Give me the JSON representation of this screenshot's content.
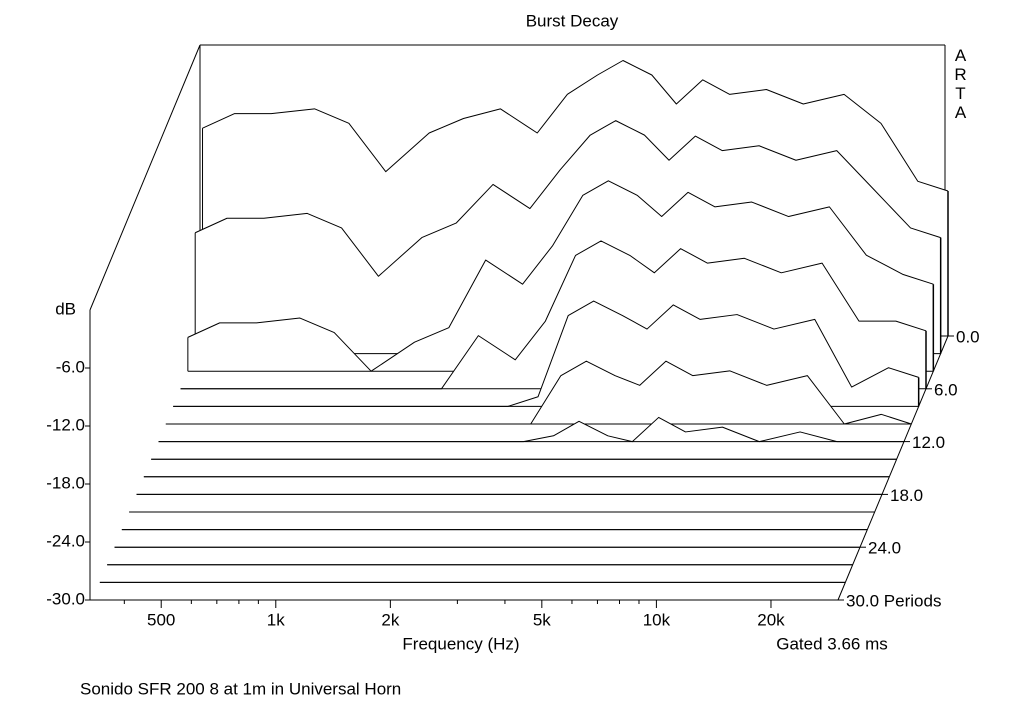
{
  "chart_data": {
    "type": "waterfall",
    "title": "Burst Decay",
    "brand": "ARTA",
    "ylabel": "dB",
    "xlabel": "Frequency (Hz)",
    "gate_note": "Gated 3.66 ms",
    "note": "Sonido SFR 200 8 at 1m in Universal Horn",
    "xscale": "log",
    "xlim": [
      325,
      30000
    ],
    "xticks": [
      500,
      {
        "value": 1000,
        "label": "1k"
      },
      {
        "value": 2000,
        "label": "2k"
      },
      {
        "value": 5000,
        "label": "5k"
      },
      {
        "value": 10000,
        "label": "10k"
      },
      {
        "value": 20000,
        "label": "20k"
      }
    ],
    "xminorticks": [
      400,
      600,
      700,
      800,
      900,
      3000,
      4000,
      6000,
      7000,
      8000,
      9000
    ],
    "ylim": [
      -30,
      0
    ],
    "yticks": [
      {
        "value": -30,
        "label": "-30.0"
      },
      {
        "value": -24,
        "label": "-24.0"
      },
      {
        "value": -18,
        "label": "-18.0"
      },
      {
        "value": -12,
        "label": "-12.0"
      },
      {
        "value": -6,
        "label": "-6.0"
      }
    ],
    "zlim": [
      0,
      30
    ],
    "zticks": [
      {
        "value": 0,
        "label": "0.0"
      },
      {
        "value": 6,
        "label": "6.0"
      },
      {
        "value": 12,
        "label": "12.0"
      },
      {
        "value": 18,
        "label": "18.0"
      },
      {
        "value": 24,
        "label": "24.0"
      },
      {
        "value": 30,
        "label": "30.0 Periods"
      }
    ],
    "color": "#000000",
    "x": [
      330,
      400,
      500,
      650,
      800,
      1000,
      1300,
      1600,
      2000,
      2500,
      3000,
      3600,
      4200,
      5000,
      5800,
      6800,
      8000,
      10000,
      12500,
      16000,
      20000,
      25000,
      30000
    ],
    "z": [
      0,
      2,
      4,
      6,
      8,
      10,
      12,
      14,
      16,
      18,
      20,
      22,
      24,
      26,
      28,
      30
    ],
    "surface": [
      [
        -8.5,
        -7,
        -7,
        -6.5,
        -8,
        -13,
        -9,
        -7.5,
        -6.5,
        -9,
        -5,
        -3,
        -1.5,
        -3,
        -6,
        -3.5,
        -5,
        -4.5,
        -6,
        -5,
        -8,
        -14,
        -15
      ],
      [
        -17.5,
        -16,
        -16,
        -15.5,
        -17,
        -22,
        -18,
        -16.5,
        -12.5,
        -15,
        -11,
        -7.4,
        -5.9,
        -7.4,
        -10,
        -7.5,
        -9,
        -8.5,
        -10,
        -9,
        -13,
        -17,
        -18
      ],
      [
        -26.5,
        -25,
        -25,
        -24.5,
        -26,
        -30,
        -27,
        -25.5,
        -18.5,
        -21,
        -17,
        -11.8,
        -10.3,
        -11.8,
        -14,
        -11.5,
        -13,
        -12.5,
        -14,
        -13,
        -18,
        -20,
        -21
      ],
      [
        -30,
        -30,
        -30,
        -30,
        -30,
        -30,
        -30,
        -30,
        -24.5,
        -27,
        -23,
        -16.2,
        -14.7,
        -16.2,
        -18,
        -15.5,
        -17,
        -16.5,
        -18,
        -17,
        -23,
        -23,
        -24
      ],
      [
        -30,
        -30,
        -30,
        -30,
        -30,
        -30,
        -30,
        -30,
        -30,
        -30,
        -29,
        -20.6,
        -19.1,
        -20.6,
        -22,
        -19.5,
        -21,
        -20.5,
        -22,
        -21,
        -28,
        -26,
        -27
      ],
      [
        -30,
        -30,
        -30,
        -30,
        -30,
        -30,
        -30,
        -30,
        -30,
        -30,
        -30,
        -25,
        -23.5,
        -25,
        -26,
        -23.5,
        -25,
        -24.5,
        -26,
        -25,
        -30,
        -29,
        -30
      ],
      [
        -30,
        -30,
        -30,
        -30,
        -30,
        -30,
        -30,
        -30,
        -30,
        -30,
        -30,
        -29.4,
        -27.9,
        -29.4,
        -30,
        -27.5,
        -29,
        -28.5,
        -30,
        -29,
        -30,
        -30,
        -30
      ],
      [
        -30,
        -30,
        -30,
        -30,
        -30,
        -30,
        -30,
        -30,
        -30,
        -30,
        -30,
        -30,
        -30,
        -30,
        -30,
        -30,
        -30,
        -30,
        -30,
        -30,
        -30,
        -30,
        -30
      ],
      [
        -30,
        -30,
        -30,
        -30,
        -30,
        -30,
        -30,
        -30,
        -30,
        -30,
        -30,
        -30,
        -30,
        -30,
        -30,
        -30,
        -30,
        -30,
        -30,
        -30,
        -30,
        -30,
        -30
      ],
      [
        -30,
        -30,
        -30,
        -30,
        -30,
        -30,
        -30,
        -30,
        -30,
        -30,
        -30,
        -30,
        -30,
        -30,
        -30,
        -30,
        -30,
        -30,
        -30,
        -30,
        -30,
        -30,
        -30
      ],
      [
        -30,
        -30,
        -30,
        -30,
        -30,
        -30,
        -30,
        -30,
        -30,
        -30,
        -30,
        -30,
        -30,
        -30,
        -30,
        -30,
        -30,
        -30,
        -30,
        -30,
        -30,
        -30,
        -30
      ],
      [
        -30,
        -30,
        -30,
        -30,
        -30,
        -30,
        -30,
        -30,
        -30,
        -30,
        -30,
        -30,
        -30,
        -30,
        -30,
        -30,
        -30,
        -30,
        -30,
        -30,
        -30,
        -30,
        -30
      ],
      [
        -30,
        -30,
        -30,
        -30,
        -30,
        -30,
        -30,
        -30,
        -30,
        -30,
        -30,
        -30,
        -30,
        -30,
        -30,
        -30,
        -30,
        -30,
        -30,
        -30,
        -30,
        -30,
        -30
      ],
      [
        -30,
        -30,
        -30,
        -30,
        -30,
        -30,
        -30,
        -30,
        -30,
        -30,
        -30,
        -30,
        -30,
        -30,
        -30,
        -30,
        -30,
        -30,
        -30,
        -30,
        -30,
        -30,
        -30
      ],
      [
        -30,
        -30,
        -30,
        -30,
        -30,
        -30,
        -30,
        -30,
        -30,
        -30,
        -30,
        -30,
        -30,
        -30,
        -30,
        -30,
        -30,
        -30,
        -30,
        -30,
        -30,
        -30,
        -30
      ],
      [
        -30,
        -30,
        -30,
        -30,
        -30,
        -30,
        -30,
        -30,
        -30,
        -30,
        -30,
        -30,
        -30,
        -30,
        -30,
        -30,
        -30,
        -30,
        -30,
        -30,
        -30,
        -30,
        -30
      ]
    ]
  }
}
